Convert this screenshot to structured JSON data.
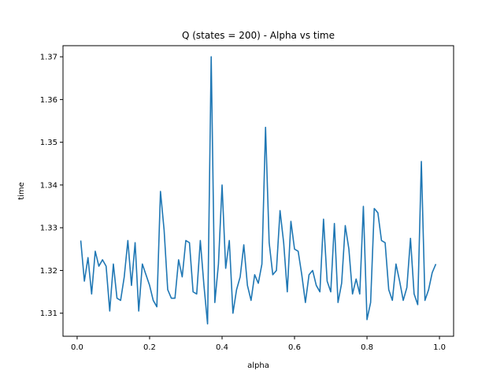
{
  "chart_data": {
    "type": "line",
    "title": "Q (states = 200) - Alpha vs time",
    "xlabel": "alpha",
    "ylabel": "time",
    "xlim": [
      -0.039,
      1.039
    ],
    "ylim": [
      1.3046,
      1.3726
    ],
    "xticks": [
      0.0,
      0.2,
      0.4,
      0.6,
      0.8,
      1.0
    ],
    "xtick_labels": [
      "0.0",
      "0.2",
      "0.4",
      "0.6",
      "0.8",
      "1.0"
    ],
    "yticks": [
      1.31,
      1.32,
      1.33,
      1.34,
      1.35,
      1.36,
      1.37
    ],
    "ytick_labels": [
      "1.31",
      "1.32",
      "1.33",
      "1.34",
      "1.35",
      "1.36",
      "1.37"
    ],
    "grid": false,
    "line_color": "#1f77b4",
    "series": [
      {
        "x_start": 0.01,
        "x_step": 0.01,
        "values": [
          1.327,
          1.3175,
          1.323,
          1.3145,
          1.3245,
          1.321,
          1.3225,
          1.321,
          1.3105,
          1.3215,
          1.3135,
          1.313,
          1.3185,
          1.327,
          1.3165,
          1.3265,
          1.3105,
          1.3215,
          1.319,
          1.3165,
          1.313,
          1.3115,
          1.3385,
          1.3295,
          1.3155,
          1.3135,
          1.3135,
          1.3225,
          1.3185,
          1.327,
          1.3265,
          1.315,
          1.3145,
          1.327,
          1.3165,
          1.3075,
          1.37,
          1.3125,
          1.3215,
          1.34,
          1.3205,
          1.327,
          1.31,
          1.3155,
          1.3185,
          1.326,
          1.3165,
          1.313,
          1.319,
          1.317,
          1.3215,
          1.3535,
          1.3265,
          1.319,
          1.32,
          1.334,
          1.3265,
          1.315,
          1.3315,
          1.325,
          1.3245,
          1.319,
          1.3125,
          1.319,
          1.32,
          1.3165,
          1.315,
          1.332,
          1.3175,
          1.315,
          1.331,
          1.3125,
          1.317,
          1.3305,
          1.325,
          1.3145,
          1.318,
          1.3145,
          1.335,
          1.3085,
          1.3125,
          1.3345,
          1.3335,
          1.327,
          1.3265,
          1.3155,
          1.313,
          1.3215,
          1.3175,
          1.313,
          1.316,
          1.3275,
          1.3145,
          1.312,
          1.3455,
          1.313,
          1.3155,
          1.3195,
          1.3215
        ]
      }
    ]
  }
}
